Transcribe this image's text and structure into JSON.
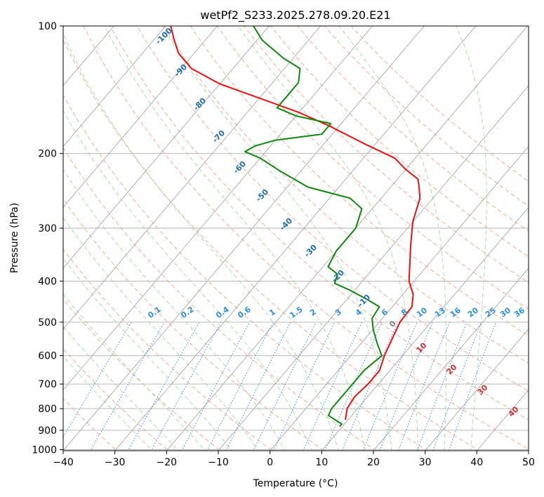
{
  "colors": {
    "temperature": "#ee1111",
    "dewpoint": "#118811",
    "isotherm": "#9e9e9e",
    "isobar": "#b0b0b0",
    "dry_adiabat": "#f4a58c",
    "moist_adiabat": "#a6d8a6",
    "mixing_ratio": "#2f8fe0",
    "isotherm_label": "#1f6fae",
    "adiabat_label": "#d03030",
    "zero_label": "#808080"
  },
  "chart_data": {
    "type": "line",
    "subtype": "skew-T log-P diagram",
    "title": "wetPf2_S233.2025.278.09.20.E21",
    "xlabel": "Temperature (°C)",
    "ylabel": "Pressure (hPa)",
    "xlim": [
      -40,
      50
    ],
    "ylim": [
      1050,
      100
    ],
    "grid": true,
    "x_ticks": [
      "−40",
      "−30",
      "−20",
      "−10",
      "0",
      "10",
      "20",
      "30",
      "40",
      "50"
    ],
    "y_ticks": [
      "100",
      "200",
      "300",
      "400",
      "500",
      "600",
      "700",
      "800",
      "900",
      "1000"
    ],
    "series": [
      {
        "name": "Temperature",
        "points": [
          [
            9.5,
            850
          ],
          [
            8,
            800
          ],
          [
            7.5,
            750
          ],
          [
            8,
            700
          ],
          [
            8,
            650
          ],
          [
            6.5,
            600
          ],
          [
            5.3,
            550
          ],
          [
            4,
            500
          ],
          [
            3.8,
            460
          ],
          [
            2,
            430
          ],
          [
            -1,
            400
          ],
          [
            -4,
            360
          ],
          [
            -6.5,
            330
          ],
          [
            -10,
            290
          ],
          [
            -12.5,
            255
          ],
          [
            -14.5,
            240
          ],
          [
            -16,
            230
          ],
          [
            -20,
            218
          ],
          [
            -24,
            205
          ],
          [
            -32,
            190
          ],
          [
            -42,
            172
          ],
          [
            -50,
            160
          ],
          [
            -60,
            148
          ],
          [
            -70,
            137
          ],
          [
            -78,
            126
          ],
          [
            -83,
            116
          ],
          [
            -86,
            108
          ],
          [
            -89,
            100
          ]
        ]
      },
      {
        "name": "Dewpoint",
        "points": [
          [
            9.5,
            880
          ],
          [
            9.5,
            870
          ],
          [
            8,
            855
          ],
          [
            5.5,
            830
          ],
          [
            5,
            800
          ],
          [
            5,
            760
          ],
          [
            5,
            700
          ],
          [
            5,
            650
          ],
          [
            6,
            600
          ],
          [
            3,
            560
          ],
          [
            0,
            520
          ],
          [
            -2,
            490
          ],
          [
            -2.5,
            460
          ],
          [
            -6.5,
            440
          ],
          [
            -11,
            420
          ],
          [
            -15,
            405
          ],
          [
            -16,
            385
          ],
          [
            -19,
            370
          ],
          [
            -20,
            340
          ],
          [
            -20,
            300
          ],
          [
            -22,
            270
          ],
          [
            -26,
            255
          ],
          [
            -36,
            240
          ],
          [
            -44,
            220
          ],
          [
            -50,
            205
          ],
          [
            -54,
            198
          ],
          [
            -53,
            192
          ],
          [
            -50,
            186
          ],
          [
            -42,
            180
          ],
          [
            -42,
            170
          ],
          [
            -50,
            163
          ],
          [
            -55,
            156
          ],
          [
            -55,
            150
          ],
          [
            -55,
            143
          ],
          [
            -55,
            136
          ],
          [
            -57,
            126
          ],
          [
            -62,
            119
          ],
          [
            -69,
            108
          ],
          [
            -73,
            100
          ]
        ]
      }
    ],
    "isotherm_labels": [
      "-100",
      "-90",
      "-80",
      "-70",
      "-60",
      "-50",
      "-40",
      "-30",
      "-20",
      "-10",
      "0"
    ],
    "dry_adiabat_labels": [
      "10",
      "20",
      "30",
      "40"
    ],
    "mixing_ratio_labels": [
      "0.1",
      "0.2",
      "0.4",
      "0.6",
      "1",
      "1.5",
      "2",
      "3",
      "4",
      "6",
      "8",
      "10",
      "13",
      "16",
      "20",
      "25",
      "30",
      "36"
    ]
  }
}
